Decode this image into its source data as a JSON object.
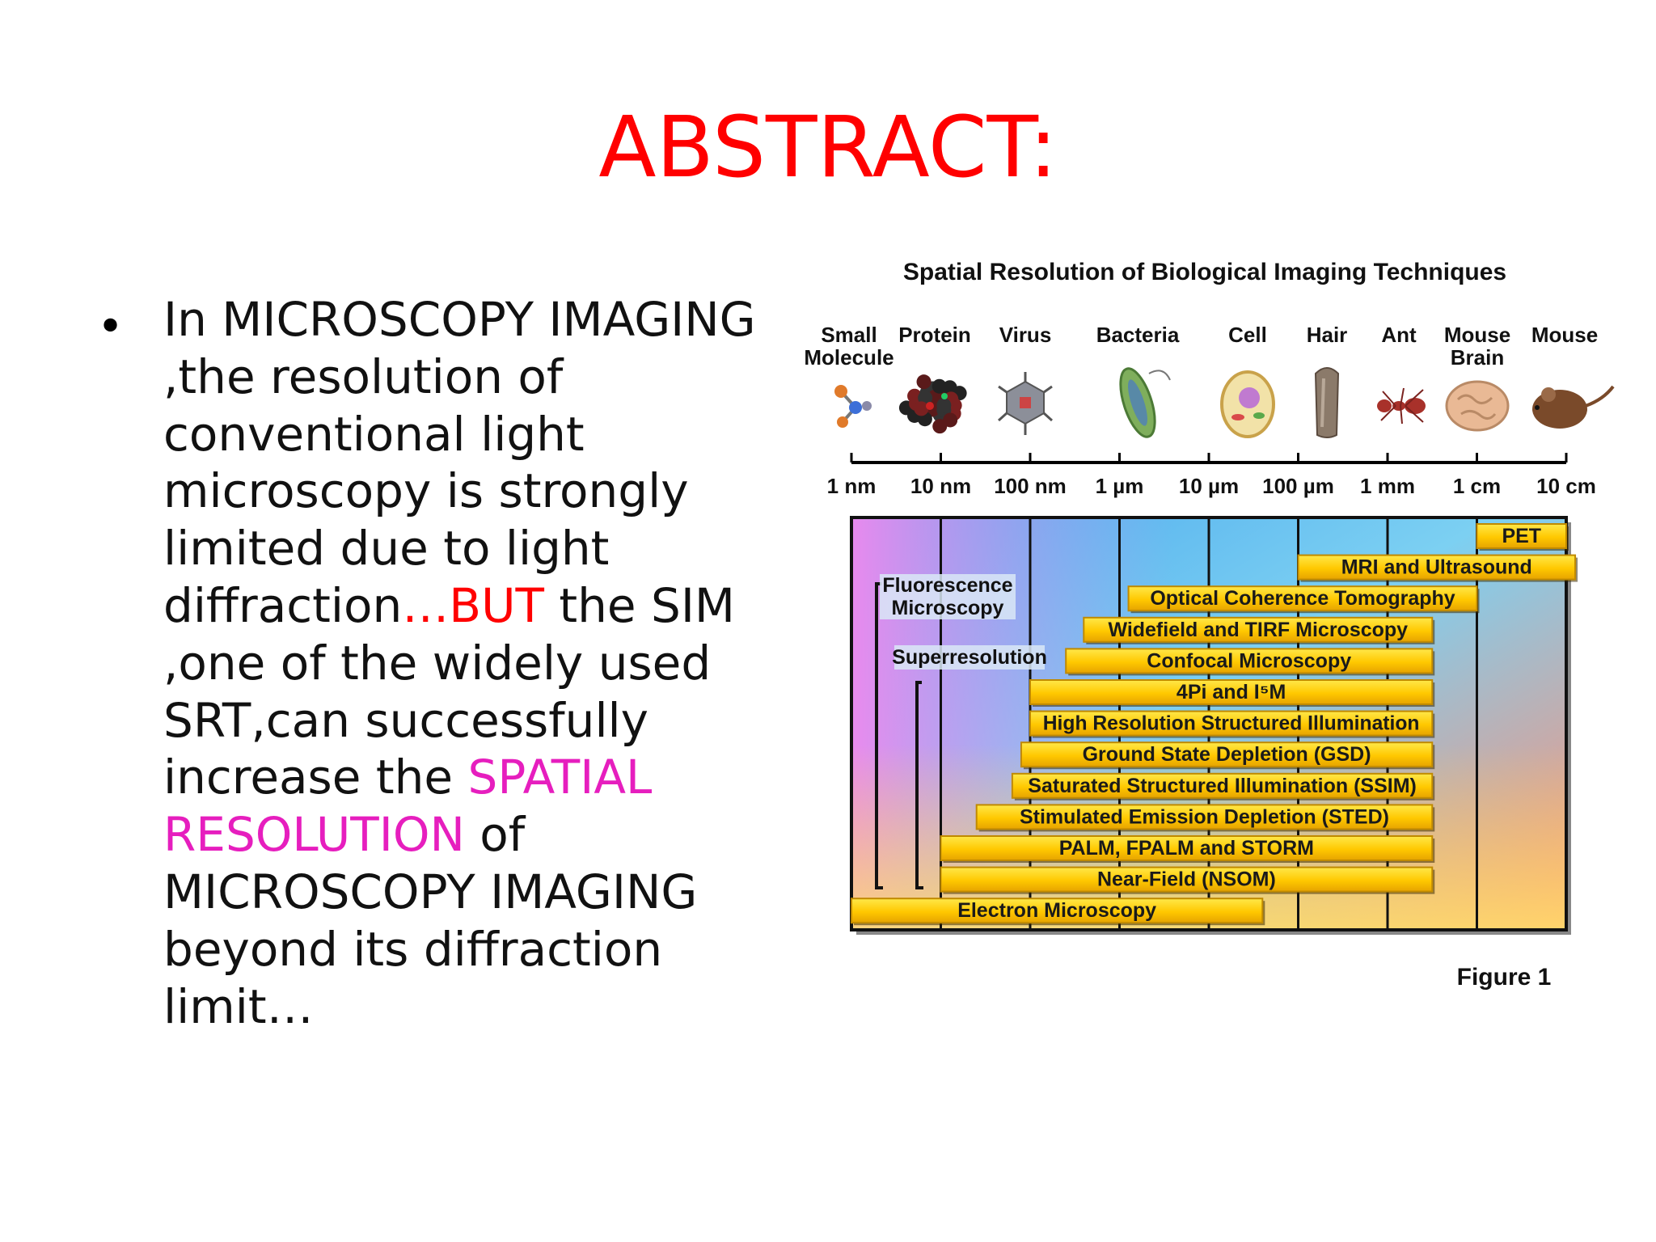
{
  "title": "ABSTRACT:",
  "bullet": {
    "lines": [
      [
        {
          "t": "In MICROSCOPY IMAGING",
          "c": ""
        }
      ],
      [
        {
          "t": ",the resolution of",
          "c": ""
        }
      ],
      [
        {
          "t": "conventional light",
          "c": ""
        }
      ],
      [
        {
          "t": "microscopy is strongly",
          "c": ""
        }
      ],
      [
        {
          "t": "limited due to light",
          "c": ""
        }
      ],
      [
        {
          "t": "diffraction",
          "c": ""
        },
        {
          "t": "…BUT",
          "c": "red"
        },
        {
          "t": " the SIM",
          "c": ""
        }
      ],
      [
        {
          "t": ",one of the widely used",
          "c": ""
        }
      ],
      [
        {
          "t": "SRT,can successfully",
          "c": ""
        }
      ],
      [
        {
          "t": "increase the ",
          "c": ""
        },
        {
          "t": "SPATIAL",
          "c": "magenta"
        }
      ],
      [
        {
          "t": "RESOLUTION",
          "c": "magenta"
        },
        {
          "t": " of",
          "c": ""
        }
      ],
      [
        {
          "t": "MICROSCOPY IMAGING",
          "c": ""
        }
      ],
      [
        {
          "t": "beyond its diffraction",
          "c": ""
        }
      ],
      [
        {
          "t": "limit…",
          "c": ""
        }
      ]
    ]
  },
  "figure": {
    "title": "Spatial Resolution of Biological Imaging Techniques",
    "caption": "Figure 1",
    "objects": [
      {
        "label": [
          "Small",
          "Molecule"
        ],
        "icon": "molecule-icon"
      },
      {
        "label": [
          "Protein"
        ],
        "icon": "protein-icon"
      },
      {
        "label": [
          "Virus"
        ],
        "icon": "virus-icon"
      },
      {
        "label": [
          "Bacteria"
        ],
        "icon": "bacteria-icon"
      },
      {
        "label": [
          "Cell"
        ],
        "icon": "cell-icon"
      },
      {
        "label": [
          "Hair"
        ],
        "icon": "hair-icon"
      },
      {
        "label": [
          "Ant"
        ],
        "icon": "ant-icon"
      },
      {
        "label": [
          "Mouse",
          "Brain"
        ],
        "icon": "brain-icon"
      },
      {
        "label": [
          "Mouse"
        ],
        "icon": "mouse-icon"
      }
    ],
    "scale_ticks": [
      "1 nm",
      "10 nm",
      "100 nm",
      "1 µm",
      "10 µm",
      "100 µm",
      "1 mm",
      "1 cm",
      "10 cm"
    ],
    "group_labels": {
      "fluorescence": [
        "Fluorescence",
        "Microscopy"
      ],
      "superresolution": "Superresolution"
    },
    "techniques": [
      {
        "name": "PET",
        "from": 7.0,
        "to": 8.0
      },
      {
        "name": "MRI and Ultrasound",
        "from": 5.0,
        "to": 8.1
      },
      {
        "name": "Optical Coherence Tomography",
        "from": 3.1,
        "to": 7.0
      },
      {
        "name": "Widefield and TIRF Microscopy",
        "from": 2.6,
        "to": 6.5
      },
      {
        "name": "Confocal Microscopy",
        "from": 2.4,
        "to": 6.5
      },
      {
        "name": "4Pi and I⁵M",
        "from": 2.0,
        "to": 6.5
      },
      {
        "name": "High Resolution Structured Illumination",
        "from": 2.0,
        "to": 6.5
      },
      {
        "name": "Ground State Depletion (GSD)",
        "from": 1.9,
        "to": 6.5
      },
      {
        "name": "Saturated Structured Illumination (SSIM)",
        "from": 1.8,
        "to": 6.5
      },
      {
        "name": "Stimulated Emission Depletion (STED)",
        "from": 1.4,
        "to": 6.5
      },
      {
        "name": "PALM, FPALM and STORM",
        "from": 1.0,
        "to": 6.5
      },
      {
        "name": "Near-Field (NSOM)",
        "from": 1.0,
        "to": 6.5
      },
      {
        "name": "Electron Microscopy",
        "from": 0.0,
        "to": 4.6
      }
    ],
    "colors": {
      "bar_fill": "#ffd700",
      "bar_edge": "#c08a00",
      "gradient_left": "#f08cf0",
      "gradient_mid": "#4fb6ef",
      "gradient_right": "#ff8c6e"
    }
  }
}
